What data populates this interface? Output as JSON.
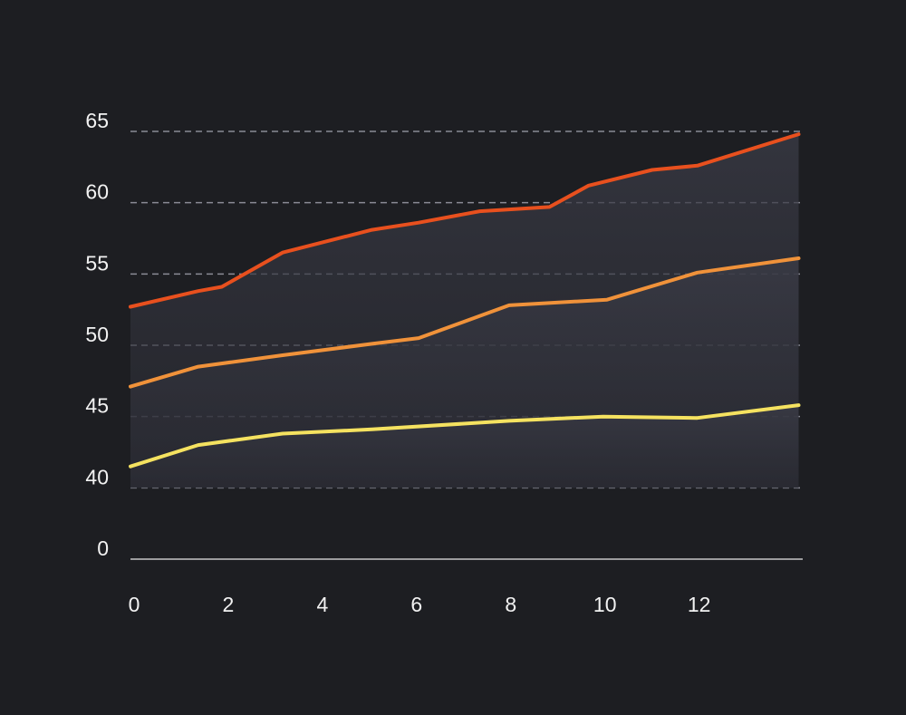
{
  "chart_data": {
    "type": "line",
    "ylim": [
      0,
      65
    ],
    "yticks": [
      0,
      40,
      45,
      50,
      55,
      60,
      65
    ],
    "y_axis_break": [
      0,
      40
    ],
    "xlim": [
      0,
      14.2
    ],
    "xticks": [
      0,
      2,
      4,
      6,
      8,
      10,
      12
    ],
    "grid": true,
    "area_fill": true,
    "series": [
      {
        "color": "#e8501e",
        "x": [
          0,
          1.44,
          1.94,
          3.23,
          5.13,
          6.12,
          7.42,
          8.9,
          9.73,
          11.08,
          12.04,
          14.19
        ],
        "values": [
          52.7,
          53.8,
          54.1,
          56.5,
          58.1,
          58.6,
          59.4,
          59.7,
          61.2,
          62.3,
          62.6,
          64.8
        ]
      },
      {
        "color": "#f0923a",
        "x": [
          0,
          1.44,
          3.23,
          5.13,
          6.12,
          8.04,
          10.12,
          12.04,
          14.19
        ],
        "values": [
          47.1,
          48.5,
          49.3,
          50.1,
          50.5,
          52.8,
          53.2,
          55.1,
          56.1
        ]
      },
      {
        "color": "#f5e260",
        "x": [
          0,
          1.44,
          3.23,
          5.13,
          8.04,
          10.04,
          12.04,
          14.19
        ],
        "values": [
          41.5,
          43.0,
          43.8,
          44.1,
          44.7,
          45.0,
          44.9,
          45.8
        ]
      }
    ]
  }
}
